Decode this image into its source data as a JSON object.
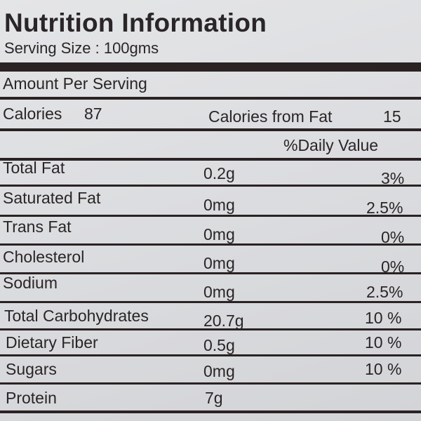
{
  "panel": {
    "title": "Nutrition Information",
    "serving_size": "Serving Size : 100gms",
    "amount_per_serving": "Amount Per Serving",
    "calories_label": "Calories",
    "calories_value": "87",
    "calories_from_fat_label": "Calories from Fat",
    "calories_from_fat_value": "15",
    "daily_value_header": "%Daily Value",
    "nutrients": [
      {
        "name": "Total Fat",
        "amount": "0.2g",
        "dv": "3%"
      },
      {
        "name": "Saturated Fat",
        "amount": "0mg",
        "dv": "2.5%"
      },
      {
        "name": "Trans Fat",
        "amount": "0mg",
        "dv": "0%"
      },
      {
        "name": "Cholesterol",
        "amount": "0mg",
        "dv": "0%"
      },
      {
        "name": "Sodium",
        "amount": "0mg",
        "dv": "2.5%"
      },
      {
        "name": "Total Carbohydrates",
        "amount": "20.7g",
        "dv": "10 %"
      },
      {
        "name": "Dietary Fiber",
        "amount": "0.5g",
        "dv": "10 %"
      },
      {
        "name": "Sugars",
        "amount": "0mg",
        "dv": "10 %"
      },
      {
        "name": "Protein",
        "amount": "7g",
        "dv": ""
      }
    ]
  }
}
